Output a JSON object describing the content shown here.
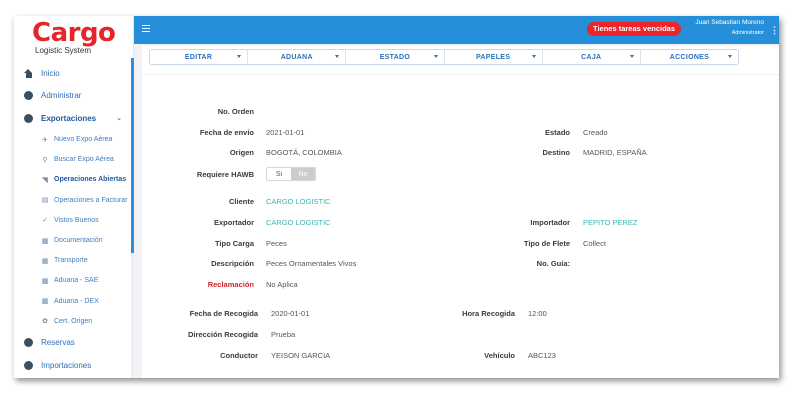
{
  "brand": {
    "name": "Cargo",
    "tagline": "Logistic System"
  },
  "header": {
    "alert": "Tienes tareas vencidas",
    "user_name": "Juan Sebastian Moreno",
    "user_role": "Administrator",
    "colors": {
      "bar": "#2590d9",
      "alert": "#e8262b"
    }
  },
  "sidebar": {
    "items": [
      {
        "label": "Inicio",
        "icon": "home-icon"
      },
      {
        "label": "Administrar",
        "icon": "circle-arrow-icon"
      },
      {
        "label": "Exportaciones",
        "icon": "circle-arrow-icon"
      },
      {
        "label": "Reservas",
        "icon": "circle-arrow-icon"
      },
      {
        "label": "Importaciones",
        "icon": "circle-arrow-icon"
      }
    ],
    "sub_items": [
      {
        "label": "Nuevo Expo Aérea",
        "icon": "plane-icon"
      },
      {
        "label": "Buscar Expo Aérea",
        "icon": "search-icon"
      },
      {
        "label": "Operaciones Abiertas",
        "icon": "folder-open-icon"
      },
      {
        "label": "Operaciones a Facturar",
        "icon": "print-icon"
      },
      {
        "label": "Vistos Buenos",
        "icon": "check-icon"
      },
      {
        "label": "Documentación",
        "icon": "document-icon"
      },
      {
        "label": "Transporte",
        "icon": "truck-icon"
      },
      {
        "label": "Aduana - SAE",
        "icon": "document-icon"
      },
      {
        "label": "Aduana - DEX",
        "icon": "document-icon"
      },
      {
        "label": "Cert. Origen",
        "icon": "certificate-icon"
      }
    ]
  },
  "toolbar": {
    "tabs": [
      "EDITAR",
      "ADUANA",
      "ESTADO",
      "PAPELES",
      "CAJA",
      "ACCIONES"
    ]
  },
  "form": {
    "no_orden": {
      "label": "No. Orden",
      "value": ""
    },
    "fecha_envio": {
      "label": "Fecha de envío",
      "value": "2021-01-01"
    },
    "estado": {
      "label": "Estado",
      "value": "Creado"
    },
    "origen": {
      "label": "Origen",
      "value": "BOGOTÁ, COLOMBIA"
    },
    "destino": {
      "label": "Destino",
      "value": "MADRID, ESPAÑA"
    },
    "requiere_hawb": {
      "label": "Requiere HAWB",
      "options": [
        "Si",
        "No"
      ],
      "selected": "No"
    },
    "cliente": {
      "label": "Cliente",
      "value": "CARGO LOGISTIC"
    },
    "exportador": {
      "label": "Exportador",
      "value": "CARGO LOGISTIC"
    },
    "importador": {
      "label": "Importador",
      "value": "PEPITO PEREZ"
    },
    "tipo_carga": {
      "label": "Tipo Carga",
      "value": "Peces"
    },
    "tipo_flete": {
      "label": "Tipo de Flete",
      "value": "Collect"
    },
    "descripcion": {
      "label": "Descripción",
      "value": "Peces Ornamentales Vivos"
    },
    "no_guia": {
      "label": "No. Guía:",
      "value": ""
    },
    "reclamacion": {
      "label": "Reclamación",
      "value": "No Aplica"
    },
    "fecha_recogida": {
      "label": "Fecha de Recogida",
      "value": "2020-01-01"
    },
    "hora_recogida": {
      "label": "Hora Recogida",
      "value": "12:00"
    },
    "direccion_recogida": {
      "label": "Dirección Recogida",
      "value": "Prueba"
    },
    "conductor": {
      "label": "Conductor",
      "value": "YEISON GARCIA"
    },
    "vehiculo": {
      "label": "Vehículo",
      "value": "ABC123"
    }
  }
}
